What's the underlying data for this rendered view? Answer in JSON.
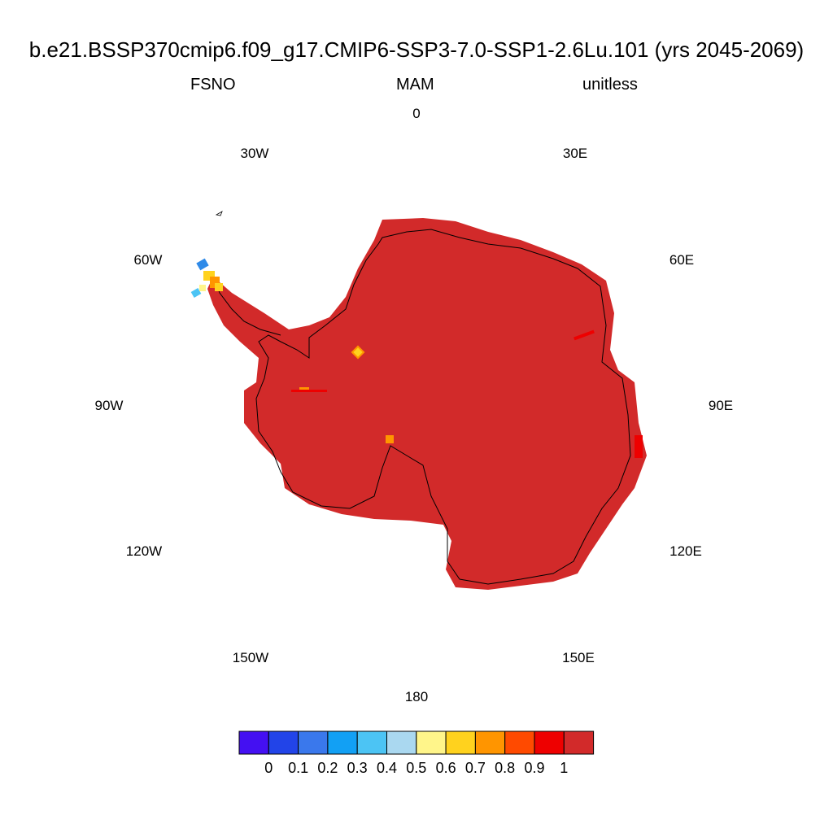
{
  "title": "b.e21.BSSP370cmip6.f09_g17.CMIP6-SSP3-7.0-SSP1-2.6Lu.101 (yrs 2045-2069)",
  "left_label": "FSNO",
  "center_label": "MAM",
  "right_label": "unitless",
  "longitude_labels": [
    "0",
    "30E",
    "60E",
    "90E",
    "120E",
    "150E",
    "180",
    "150W",
    "120W",
    "90W",
    "60W",
    "30W"
  ],
  "colorbar": {
    "colors": [
      "#4410f2",
      "#2244e8",
      "#3a78ec",
      "#12a0f4",
      "#4cc4f4",
      "#aad8f0",
      "#fff58a",
      "#ffd21e",
      "#ff9500",
      "#ff4a00",
      "#ee0000",
      "#d22a2a"
    ],
    "labels": [
      "0",
      "0.1",
      "0.2",
      "0.3",
      "0.4",
      "0.5",
      "0.6",
      "0.7",
      "0.8",
      "0.9",
      "1"
    ]
  }
}
